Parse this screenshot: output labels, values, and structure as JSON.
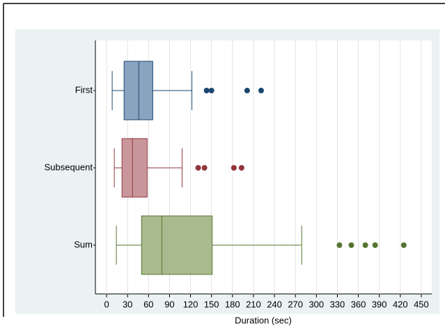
{
  "chart_data": {
    "type": "box",
    "xlabel": "Duration (sec)",
    "categories": [
      "First",
      "Subsequent",
      "Sum"
    ],
    "boxes": [
      {
        "color": "#1a476f",
        "fill": "#8aa4bf",
        "min": 8,
        "q1": 25,
        "median": 46,
        "q3": 66,
        "max": 122,
        "outliers": [
          143,
          150,
          201,
          221
        ]
      },
      {
        "color": "#90353b",
        "fill": "#c9979b",
        "min": 11,
        "q1": 22,
        "median": 37,
        "q3": 58,
        "max": 108,
        "outliers": [
          131,
          140,
          182,
          193
        ]
      },
      {
        "color": "#55752f",
        "fill": "#a9bb8e",
        "min": 14,
        "q1": 50,
        "median": 79,
        "q3": 151,
        "max": 279,
        "outliers": [
          333,
          350,
          370,
          384,
          425
        ]
      }
    ],
    "xlim": [
      -16,
      465
    ],
    "xticks": [
      0,
      30,
      60,
      90,
      120,
      150,
      180,
      210,
      240,
      270,
      300,
      330,
      360,
      390,
      420,
      450
    ],
    "grid": true
  }
}
